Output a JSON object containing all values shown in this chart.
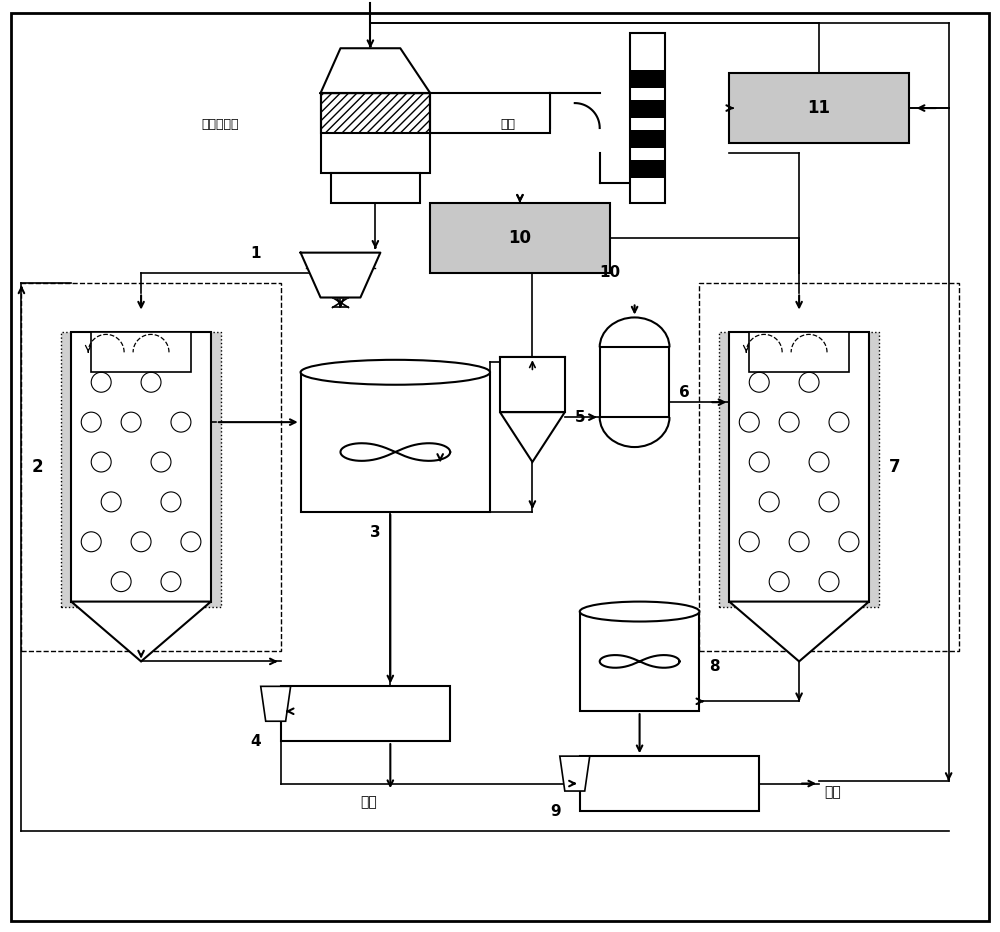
{
  "labels": {
    "desulfur_tower": "脱硫吸收塔",
    "flue": "烟道",
    "1": "1",
    "2": "2",
    "3": "3",
    "4": "4",
    "5": "5",
    "6": "6",
    "7": "7",
    "8": "8",
    "9": "9",
    "10": "10",
    "11": "11",
    "mud_cake": "泥饼",
    "wastewater": "废水"
  },
  "gray_fill": "#c8c8c8",
  "light_gray": "#d8d8d8"
}
